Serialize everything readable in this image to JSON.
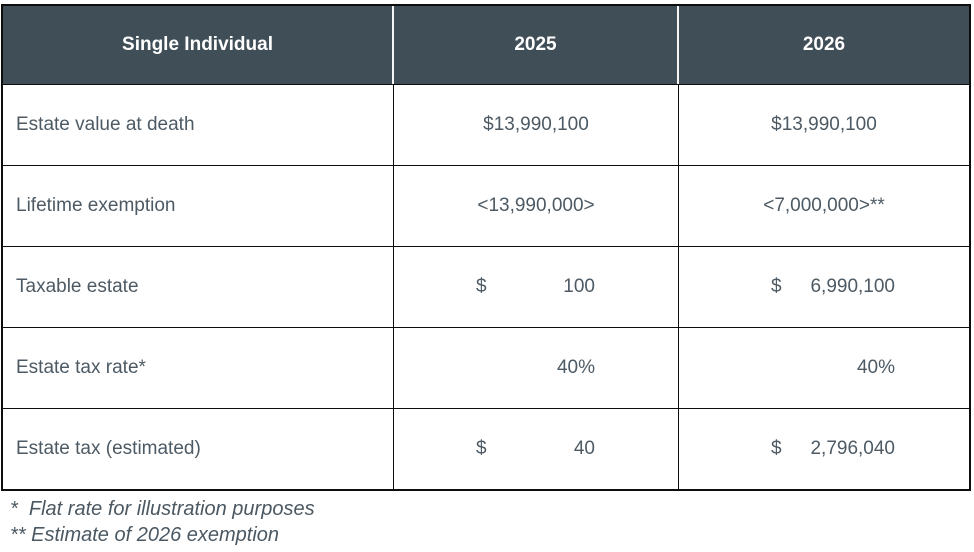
{
  "table": {
    "columns": [
      "Single Individual",
      "2025",
      "2026"
    ],
    "rows": [
      {
        "label": "Estate value at death",
        "y2025": {
          "text": "$13,990,100"
        },
        "y2026": {
          "text": "$13,990,100"
        }
      },
      {
        "label": "Lifetime exemption",
        "y2025": {
          "text": "<13,990,000>"
        },
        "y2026": {
          "text": "<7,000,000>**"
        }
      },
      {
        "label": "Taxable estate",
        "y2025": {
          "currency": "$",
          "amount": "100"
        },
        "y2026": {
          "currency": "$",
          "amount": "6,990,100"
        }
      },
      {
        "label": "Estate tax rate*",
        "y2025": {
          "currency": "",
          "amount": "40%"
        },
        "y2026": {
          "currency": "",
          "amount": "40%"
        }
      },
      {
        "label": "Estate tax (estimated)",
        "y2025": {
          "currency": "$",
          "amount": "40"
        },
        "y2026": {
          "currency": "$",
          "amount": "2,796,040"
        }
      }
    ]
  },
  "footnotes": [
    "*  Flat rate for illustration purposes",
    "** Estimate of 2026 exemption"
  ],
  "colors": {
    "header_bg": "#404e57",
    "header_text": "#ffffff",
    "body_text": "#4d5a64",
    "border": "#0d0d0d"
  }
}
